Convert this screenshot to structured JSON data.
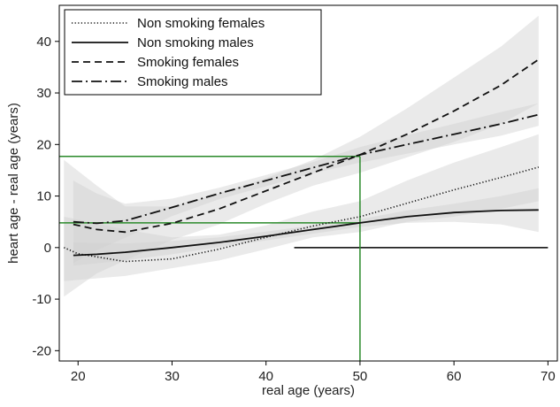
{
  "chart_data": {
    "type": "line",
    "xlabel": "real age (years)",
    "ylabel": "heart age - real age (years)",
    "xlim": [
      18,
      71
    ],
    "ylim": [
      -22,
      47
    ],
    "x_ticks": [
      20,
      30,
      40,
      50,
      60,
      70
    ],
    "y_ticks": [
      -20,
      -10,
      0,
      10,
      20,
      30,
      40
    ],
    "grid": false,
    "legend_position": "top-left",
    "series": [
      {
        "name": "Non smoking females",
        "dash": "dotted",
        "points": [
          [
            18.5,
            0
          ],
          [
            20,
            -1.2
          ],
          [
            25,
            -2.7
          ],
          [
            30,
            -2.2
          ],
          [
            35,
            -0.3
          ],
          [
            40,
            2
          ],
          [
            45,
            4.2
          ],
          [
            50,
            6
          ],
          [
            55,
            8.6
          ],
          [
            60,
            11.2
          ],
          [
            65,
            13.6
          ],
          [
            69,
            15.6
          ]
        ],
        "ci_upper": [
          [
            18.5,
            6
          ],
          [
            25,
            3.5
          ],
          [
            30,
            2
          ],
          [
            35,
            2.5
          ],
          [
            40,
            4.3
          ],
          [
            45,
            7
          ],
          [
            50,
            9
          ],
          [
            55,
            13
          ],
          [
            60,
            16.5
          ],
          [
            65,
            19.5
          ],
          [
            69,
            22
          ]
        ],
        "ci_lower": [
          [
            18.5,
            -6.5
          ],
          [
            25,
            -5.5
          ],
          [
            30,
            -4
          ],
          [
            35,
            -2.5
          ],
          [
            40,
            -0.3
          ],
          [
            45,
            2
          ],
          [
            50,
            3
          ],
          [
            55,
            5
          ],
          [
            60,
            6
          ],
          [
            65,
            7.5
          ],
          [
            69,
            9
          ]
        ]
      },
      {
        "name": "Non smoking males",
        "dash": "solid",
        "points": [
          [
            19.5,
            -1.5
          ],
          [
            22,
            -1.3
          ],
          [
            25,
            -0.9
          ],
          [
            30,
            0
          ],
          [
            35,
            1
          ],
          [
            40,
            2.2
          ],
          [
            45,
            3.5
          ],
          [
            50,
            4.8
          ],
          [
            55,
            6
          ],
          [
            60,
            6.8
          ],
          [
            65,
            7.2
          ],
          [
            69,
            7.3
          ]
        ],
        "ci_upper": [
          [
            19.5,
            1
          ],
          [
            25,
            0.8
          ],
          [
            30,
            1.3
          ],
          [
            35,
            2
          ],
          [
            40,
            3.1
          ],
          [
            45,
            4.3
          ],
          [
            50,
            5.5
          ],
          [
            55,
            7.2
          ],
          [
            60,
            8.5
          ],
          [
            65,
            10
          ],
          [
            69,
            11.5
          ]
        ],
        "ci_lower": [
          [
            19.5,
            -3.5
          ],
          [
            25,
            -2.5
          ],
          [
            30,
            -1.3
          ],
          [
            35,
            0.1
          ],
          [
            40,
            1.4
          ],
          [
            45,
            2.7
          ],
          [
            50,
            4
          ],
          [
            55,
            4.8
          ],
          [
            60,
            5
          ],
          [
            65,
            4.5
          ],
          [
            69,
            3
          ]
        ]
      },
      {
        "name": "Smoking females",
        "dash": "dashed",
        "points": [
          [
            19.5,
            4.5
          ],
          [
            22,
            3.5
          ],
          [
            25,
            3
          ],
          [
            30,
            4.7
          ],
          [
            35,
            7.5
          ],
          [
            40,
            11
          ],
          [
            45,
            14.5
          ],
          [
            50,
            18
          ],
          [
            55,
            22
          ],
          [
            60,
            26.5
          ],
          [
            65,
            31.5
          ],
          [
            69,
            36.5
          ]
        ],
        "ci_upper": [
          [
            18.5,
            17
          ],
          [
            22,
            12
          ],
          [
            25,
            8
          ],
          [
            30,
            8
          ],
          [
            35,
            10.5
          ],
          [
            40,
            13.5
          ],
          [
            45,
            17
          ],
          [
            50,
            21.5
          ],
          [
            55,
            27
          ],
          [
            60,
            33
          ],
          [
            65,
            39
          ],
          [
            69,
            45
          ]
        ],
        "ci_lower": [
          [
            18.5,
            -9.5
          ],
          [
            22,
            -5
          ],
          [
            25,
            -2.5
          ],
          [
            30,
            1.5
          ],
          [
            35,
            4.5
          ],
          [
            40,
            8.5
          ],
          [
            45,
            12
          ],
          [
            50,
            14.5
          ],
          [
            55,
            17.5
          ],
          [
            60,
            20.5
          ],
          [
            65,
            24
          ],
          [
            69,
            28
          ]
        ]
      },
      {
        "name": "Smoking males",
        "dash": "dashdot",
        "points": [
          [
            19.5,
            5
          ],
          [
            22,
            4.7
          ],
          [
            25,
            5.2
          ],
          [
            30,
            7.8
          ],
          [
            35,
            10.5
          ],
          [
            40,
            13
          ],
          [
            45,
            15.5
          ],
          [
            50,
            18
          ],
          [
            55,
            20
          ],
          [
            60,
            22
          ],
          [
            65,
            24
          ],
          [
            69,
            25.8
          ]
        ],
        "ci_upper": [
          [
            19.5,
            13
          ],
          [
            22,
            10.5
          ],
          [
            25,
            8.5
          ],
          [
            30,
            9.5
          ],
          [
            35,
            11.6
          ],
          [
            40,
            14.1
          ],
          [
            45,
            16.6
          ],
          [
            50,
            19.5
          ],
          [
            55,
            21.8
          ],
          [
            60,
            24
          ],
          [
            65,
            26.3
          ],
          [
            69,
            28
          ]
        ],
        "ci_lower": [
          [
            19.5,
            -3
          ],
          [
            22,
            -0.5
          ],
          [
            25,
            1.9
          ],
          [
            30,
            6.1
          ],
          [
            35,
            9.4
          ],
          [
            40,
            11.9
          ],
          [
            45,
            14.4
          ],
          [
            50,
            16.5
          ],
          [
            55,
            18.2
          ],
          [
            60,
            20
          ],
          [
            65,
            21.7
          ],
          [
            69,
            23.6
          ]
        ]
      }
    ],
    "reference_lines": [
      {
        "kind": "hline",
        "y": 0,
        "x_from": 43,
        "x_to": 70,
        "color": "#000000"
      },
      {
        "kind": "hline",
        "y": 17.7,
        "x_from": 18,
        "x_to": 50,
        "color": "#2a8a2a"
      },
      {
        "kind": "hline",
        "y": 4.8,
        "x_from": 18,
        "x_to": 50,
        "color": "#2a8a2a"
      },
      {
        "kind": "vline",
        "x": 50,
        "y_from": -22,
        "y_to": 17.7,
        "color": "#2a8a2a"
      }
    ],
    "colors": {
      "line": "#111111",
      "ci_band": "#d0d0d0",
      "reference": "#2a8a2a"
    }
  }
}
